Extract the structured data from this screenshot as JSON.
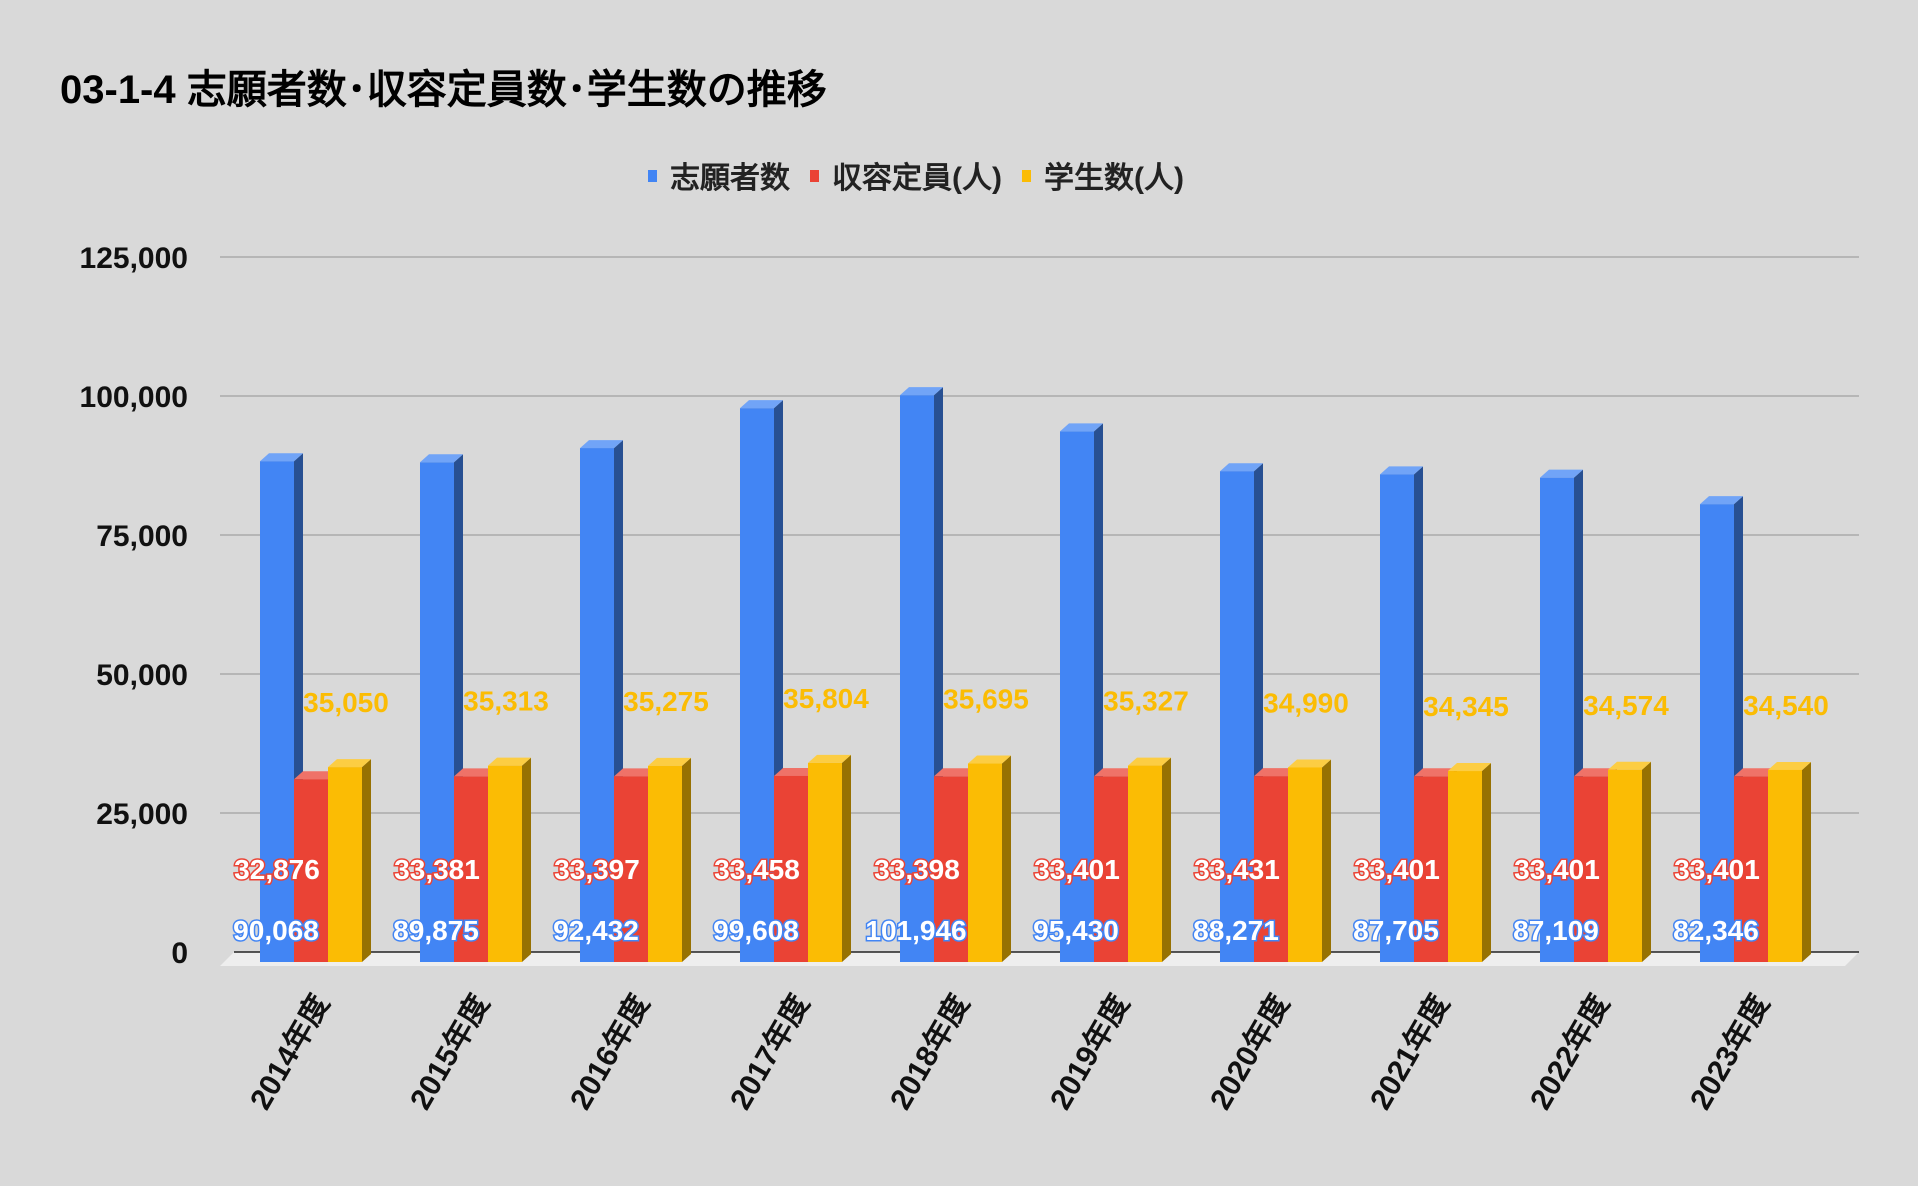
{
  "chart_data": {
    "type": "bar",
    "style": "3d-clustered",
    "title": "03-1-4 志願者数･収容定員数･学生数の推移",
    "xlabel": "",
    "ylabel": "",
    "ylim": [
      0,
      125000
    ],
    "yticks": [
      0,
      25000,
      50000,
      75000,
      100000,
      125000
    ],
    "ytick_labels": [
      "0",
      "25,000",
      "50,000",
      "75,000",
      "100,000",
      "125,000"
    ],
    "grid": true,
    "legend_position": "top-center",
    "categories": [
      "2014年度",
      "2015年度",
      "2016年度",
      "2017年度",
      "2018年度",
      "2019年度",
      "2020年度",
      "2021年度",
      "2022年度",
      "2023年度"
    ],
    "series": [
      {
        "name": "志願者数",
        "color": "#4285f4",
        "values": [
          90068,
          89875,
          92432,
          99608,
          101946,
          95430,
          88271,
          87705,
          87109,
          82346
        ],
        "labels": [
          "90,068",
          "89,875",
          "92,432",
          "99,608",
          "101,946",
          "95,430",
          "88,271",
          "87,705",
          "87,109",
          "82,346"
        ]
      },
      {
        "name": "収容定員(人)",
        "color": "#ea4335",
        "values": [
          32876,
          33381,
          33397,
          33458,
          33398,
          33401,
          33431,
          33401,
          33401,
          33401
        ],
        "labels": [
          "32,876",
          "33,381",
          "33,397",
          "33,458",
          "33,398",
          "33,401",
          "33,431",
          "33,401",
          "33,401",
          "33,401"
        ]
      },
      {
        "name": "学生数(人)",
        "color": "#fbbc04",
        "values": [
          35050,
          35313,
          35275,
          35804,
          35695,
          35327,
          34990,
          34345,
          34574,
          34540
        ],
        "labels": [
          "35,050",
          "35,313",
          "35,275",
          "35,804",
          "35,695",
          "35,327",
          "34,990",
          "34,345",
          "34,574",
          "34,540"
        ]
      }
    ]
  }
}
